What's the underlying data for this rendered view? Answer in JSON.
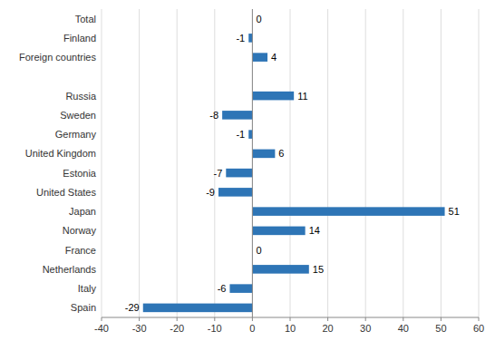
{
  "chart_data": {
    "type": "bar",
    "orientation": "horizontal",
    "categories": [
      "Total",
      "Finland",
      "Foreign countries",
      null,
      "Russia",
      "Sweden",
      "Germany",
      "United Kingdom",
      "Estonia",
      "United States",
      "Japan",
      "Norway",
      "France",
      "Netherlands",
      "Italy",
      "Spain"
    ],
    "values": [
      0,
      -1,
      4,
      null,
      11,
      -8,
      -1,
      6,
      -7,
      -9,
      51,
      14,
      0,
      15,
      -6,
      -29
    ],
    "color": "#2E75B6",
    "xlim": [
      -40,
      60
    ],
    "xticks": [
      -40,
      -30,
      -20,
      -10,
      0,
      10,
      20,
      30,
      40,
      50,
      60
    ],
    "grid": true,
    "data_labels": true
  }
}
